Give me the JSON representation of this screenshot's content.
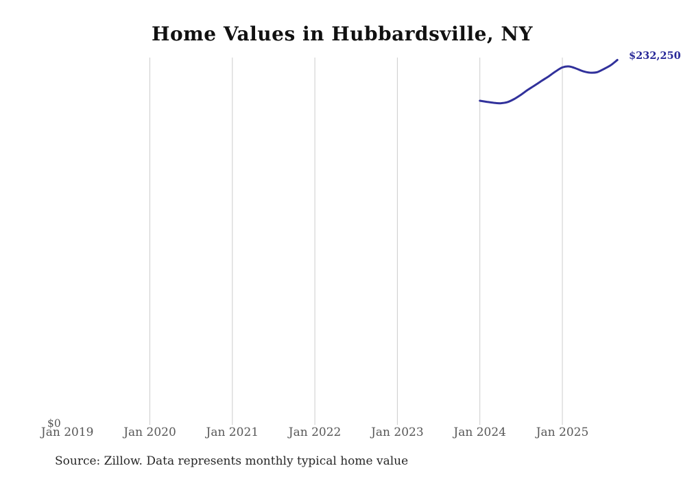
{
  "title": "Home Values in Hubbardsville, NY",
  "end_label": "$232,250",
  "y_axis": {
    "zero_label": "$0"
  },
  "x_axis": {
    "tick_labels": [
      "Jan 2019",
      "Jan 2020",
      "Jan 2021",
      "Jan 2022",
      "Jan 2023",
      "Jan 2024",
      "Jan 2025"
    ]
  },
  "source_note": "Source: Zillow. Data represents monthly typical home value",
  "colors": {
    "line": "#31319b",
    "end_label": "#2a2a99",
    "gridline": "#cccccc",
    "axis_text": "#575757",
    "title_text": "#111111",
    "source_text": "#262626",
    "background": "#ffffff"
  },
  "chart_data": {
    "type": "line",
    "title": "Home Values in Hubbardsville, NY",
    "series_name": "Monthly typical home value (USD)",
    "x": [
      "Jan 2024",
      "Feb 2024",
      "Mar 2024",
      "Apr 2024",
      "May 2024",
      "Jun 2024",
      "Jul 2024",
      "Aug 2024",
      "Sep 2024",
      "Oct 2024",
      "Nov 2024",
      "Dec 2024",
      "Jan 2025",
      "Feb 2025",
      "Mar 2025",
      "Apr 2025",
      "May 2025",
      "Jun 2025",
      "Jul 2025",
      "Aug 2025",
      "Sep 2025"
    ],
    "values": [
      206300,
      205600,
      205000,
      204700,
      205400,
      207400,
      210200,
      213300,
      216100,
      219000,
      221800,
      224900,
      227500,
      228100,
      226800,
      225100,
      224200,
      224400,
      226400,
      228800,
      232250
    ],
    "xlabel": "",
    "ylabel": "",
    "ylim": [
      0,
      240000
    ],
    "x_axis_range_labels": [
      "Jan 2019",
      "Jan 2025"
    ],
    "grid": "vertical-only",
    "legend": "none",
    "end_point_label": "$232,250",
    "unit": "USD"
  }
}
